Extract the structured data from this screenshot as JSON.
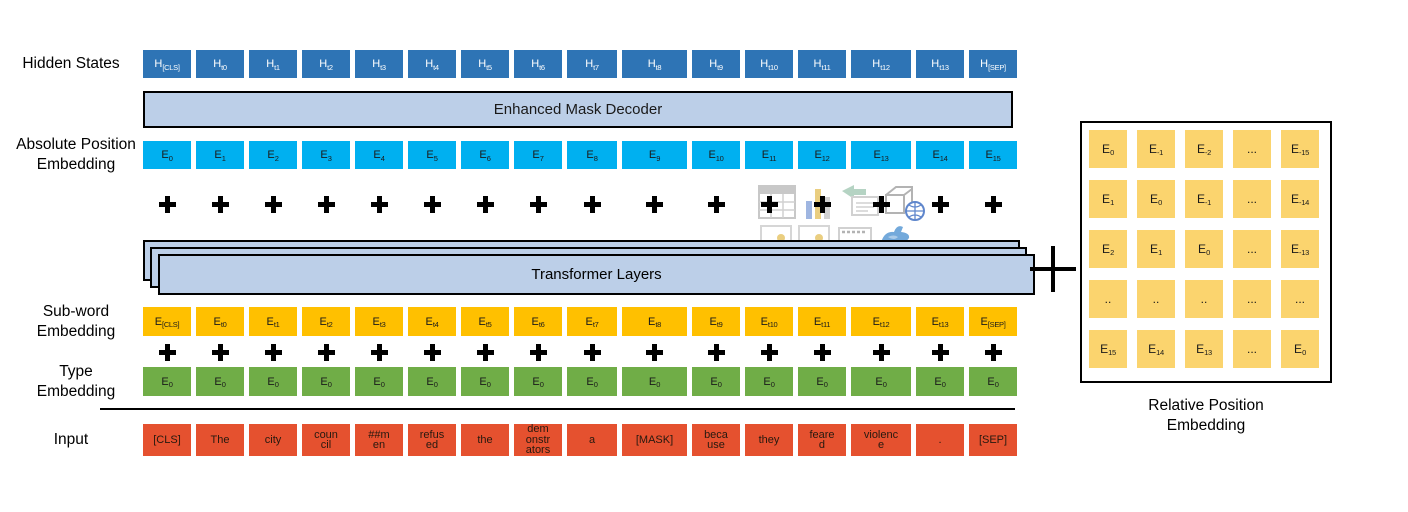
{
  "labels": {
    "hidden_states": "Hidden States",
    "absolute_position": "Absolute Position\nEmbedding",
    "sub_word": "Sub-word\nEmbedding",
    "type": "Type\nEmbedding",
    "input": "Input",
    "relative_position": "Relative Position\nEmbedding"
  },
  "bars": {
    "enhanced_mask_decoder": "Enhanced Mask Decoder",
    "transformer_layers": "Transformer Layers"
  },
  "colors": {
    "hidden_box": "#2E74B5",
    "decoder_bar": "#BCCFE8",
    "absolute_box": "#00B0F0",
    "subword_box": "#FFC000",
    "type_box": "#70AD47",
    "input_box": "#E5512F",
    "matrix_box": "#FBD46E"
  },
  "rows": {
    "hidden": [
      {
        "m": "H",
        "s": "[CLS]"
      },
      {
        "m": "H",
        "s": "t0"
      },
      {
        "m": "H",
        "s": "t1"
      },
      {
        "m": "H",
        "s": "t2"
      },
      {
        "m": "H",
        "s": "t3"
      },
      {
        "m": "H",
        "s": "t4"
      },
      {
        "m": "H",
        "s": "t5"
      },
      {
        "m": "H",
        "s": "t6"
      },
      {
        "m": "H",
        "s": "t7"
      },
      {
        "m": "H",
        "s": "t8"
      },
      {
        "m": "H",
        "s": "t9"
      },
      {
        "m": "H",
        "s": "t10"
      },
      {
        "m": "H",
        "s": "t11"
      },
      {
        "m": "H",
        "s": "t12"
      },
      {
        "m": "H",
        "s": "t13"
      },
      {
        "m": "H",
        "s": "[SEP]"
      }
    ],
    "absolute": [
      {
        "m": "E",
        "s": "0"
      },
      {
        "m": "E",
        "s": "1"
      },
      {
        "m": "E",
        "s": "2"
      },
      {
        "m": "E",
        "s": "3"
      },
      {
        "m": "E",
        "s": "4"
      },
      {
        "m": "E",
        "s": "5"
      },
      {
        "m": "E",
        "s": "6"
      },
      {
        "m": "E",
        "s": "7"
      },
      {
        "m": "E",
        "s": "8"
      },
      {
        "m": "E",
        "s": "9"
      },
      {
        "m": "E",
        "s": "10"
      },
      {
        "m": "E",
        "s": "11"
      },
      {
        "m": "E",
        "s": "12"
      },
      {
        "m": "E",
        "s": "13"
      },
      {
        "m": "E",
        "s": "14"
      },
      {
        "m": "E",
        "s": "15"
      }
    ],
    "subword": [
      {
        "m": "E",
        "s": "[CLS]"
      },
      {
        "m": "E",
        "s": "t0"
      },
      {
        "m": "E",
        "s": "t1"
      },
      {
        "m": "E",
        "s": "t2"
      },
      {
        "m": "E",
        "s": "t3"
      },
      {
        "m": "E",
        "s": "t4"
      },
      {
        "m": "E",
        "s": "t5"
      },
      {
        "m": "E",
        "s": "t6"
      },
      {
        "m": "E",
        "s": "t7"
      },
      {
        "m": "E",
        "s": "t8"
      },
      {
        "m": "E",
        "s": "t9"
      },
      {
        "m": "E",
        "s": "t10"
      },
      {
        "m": "E",
        "s": "t11"
      },
      {
        "m": "E",
        "s": "t12"
      },
      {
        "m": "E",
        "s": "t13"
      },
      {
        "m": "E",
        "s": "[SEP]"
      }
    ],
    "type": [
      {
        "m": "E",
        "s": "0"
      },
      {
        "m": "E",
        "s": "0"
      },
      {
        "m": "E",
        "s": "0"
      },
      {
        "m": "E",
        "s": "0"
      },
      {
        "m": "E",
        "s": "0"
      },
      {
        "m": "E",
        "s": "0"
      },
      {
        "m": "E",
        "s": "0"
      },
      {
        "m": "E",
        "s": "0"
      },
      {
        "m": "E",
        "s": "0"
      },
      {
        "m": "E",
        "s": "0"
      },
      {
        "m": "E",
        "s": "0"
      },
      {
        "m": "E",
        "s": "0"
      },
      {
        "m": "E",
        "s": "0"
      },
      {
        "m": "E",
        "s": "0"
      },
      {
        "m": "E",
        "s": "0"
      },
      {
        "m": "E",
        "s": "0"
      }
    ],
    "input": [
      "[CLS]",
      "The",
      "city",
      "coun\ncil",
      "##m\nen",
      "refus\ned",
      "the",
      "dem\nonstr\nators",
      "a",
      "[MASK]",
      "beca\nuse",
      "they",
      "feare\nd",
      "violenc\ne",
      ".",
      "[SEP]"
    ]
  },
  "relative_matrix": {
    "rows": [
      [
        {
          "m": "E",
          "s": "0"
        },
        {
          "m": "E",
          "s": "-1"
        },
        {
          "m": "E",
          "s": "-2"
        },
        {
          "m": "...",
          "s": ""
        },
        {
          "m": "E",
          "s": "-15"
        }
      ],
      [
        {
          "m": "E",
          "s": "1"
        },
        {
          "m": "E",
          "s": "0"
        },
        {
          "m": "E",
          "s": "-1"
        },
        {
          "m": "...",
          "s": ""
        },
        {
          "m": "E",
          "s": "-14"
        }
      ],
      [
        {
          "m": "E",
          "s": "2"
        },
        {
          "m": "E",
          "s": "1"
        },
        {
          "m": "E",
          "s": "0"
        },
        {
          "m": "...",
          "s": ""
        },
        {
          "m": "E",
          "s": "-13"
        }
      ],
      [
        {
          "m": "..",
          "s": ""
        },
        {
          "m": "..",
          "s": ""
        },
        {
          "m": "..",
          "s": ""
        },
        {
          "m": "...",
          "s": ""
        },
        {
          "m": "...",
          "s": ""
        }
      ],
      [
        {
          "m": "E",
          "s": "15"
        },
        {
          "m": "E",
          "s": "14"
        },
        {
          "m": "E",
          "s": "13"
        },
        {
          "m": "...",
          "s": ""
        },
        {
          "m": "E",
          "s": "0"
        }
      ]
    ]
  },
  "icons": [
    "plus-icon",
    "big-plus-icon",
    "table-icon",
    "bar-chart-icon",
    "smartart-icon",
    "3d-model-globe-icon",
    "picture-icon",
    "picture-icon",
    "film-strip-icon",
    "bird-icon"
  ]
}
